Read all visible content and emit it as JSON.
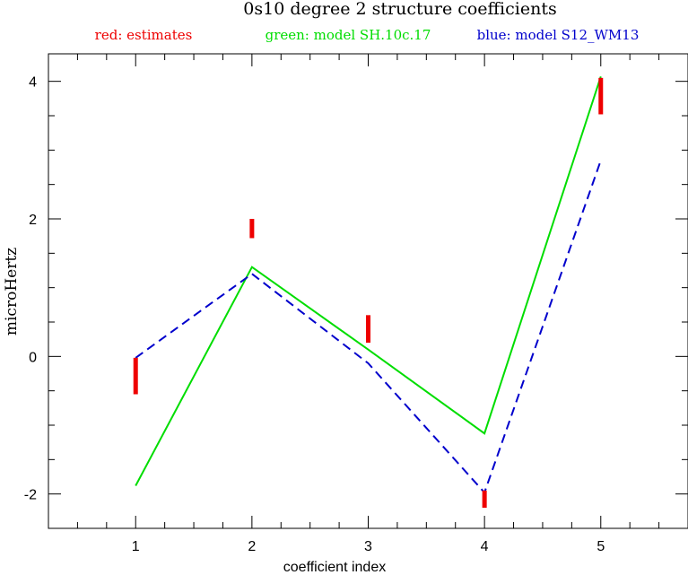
{
  "chart_data": {
    "type": "line",
    "title": "0s10 degree 2 structure coefficients",
    "legend": [
      {
        "text": "red: estimates",
        "color": "#ee0000"
      },
      {
        "text": "green: model SH.10c.17",
        "color": "#00dd00"
      },
      {
        "text": "blue: model S12_WM13",
        "color": "#0000cc"
      }
    ],
    "xlabel": "coefficient index",
    "ylabel": "microHertz",
    "xlim": [
      0.25,
      5.75
    ],
    "ylim": [
      -2.5,
      4.4
    ],
    "x_ticks": [
      1,
      2,
      3,
      4,
      5
    ],
    "y_ticks": [
      -2,
      0,
      2,
      4
    ],
    "estimates": [
      {
        "x": 1,
        "low": -0.55,
        "high": -0.02
      },
      {
        "x": 2,
        "low": 1.72,
        "high": 2.0
      },
      {
        "x": 3,
        "low": 0.2,
        "high": 0.6
      },
      {
        "x": 4,
        "low": -2.2,
        "high": -1.95
      },
      {
        "x": 5,
        "low": 3.52,
        "high": 4.05
      }
    ],
    "series": [
      {
        "name": "model SH.10c.17",
        "color": "#00dd00",
        "style": "solid",
        "x": [
          1,
          2,
          3,
          4,
          5
        ],
        "y": [
          -1.88,
          1.3,
          0.1,
          -1.12,
          4.07
        ]
      },
      {
        "name": "model S12_WM13",
        "color": "#0000cc",
        "style": "dashed",
        "x": [
          1,
          2,
          3,
          4,
          5
        ],
        "y": [
          -0.02,
          1.2,
          -0.1,
          -1.98,
          2.85
        ]
      }
    ]
  }
}
